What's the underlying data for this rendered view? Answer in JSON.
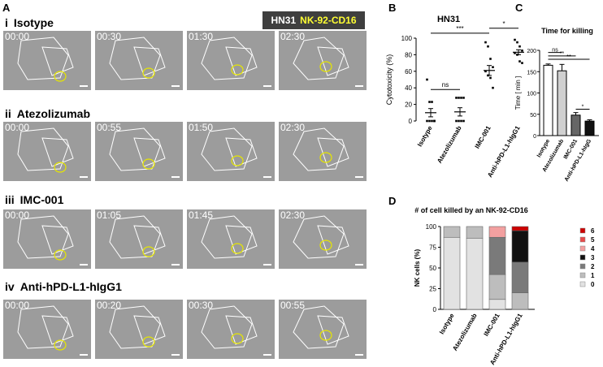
{
  "panel_a": {
    "letter": "A",
    "legend": {
      "cell": "HN31",
      "effector": "NK-92-CD16"
    },
    "rows": [
      {
        "numeral": "i",
        "name": "Isotype",
        "times": [
          "00:00",
          "00:30",
          "01:30",
          "02:30"
        ]
      },
      {
        "numeral": "ii",
        "name": "Atezolizumab",
        "times": [
          "00:00",
          "00:55",
          "01:50",
          "02:30"
        ]
      },
      {
        "numeral": "iii",
        "name": "IMC-001",
        "times": [
          "00:00",
          "01:05",
          "01:45",
          "02:30"
        ]
      },
      {
        "numeral": "iv",
        "name": "Anti-hPD-L1-hIgG1",
        "times": [
          "00:00",
          "00:20",
          "00:30",
          "00:55"
        ]
      }
    ]
  },
  "panel_b": {
    "letter": "B"
  },
  "panel_c": {
    "letter": "C"
  },
  "panel_d": {
    "letter": "D"
  },
  "chart_data": [
    {
      "type": "scatter",
      "title": "HN31",
      "ylabel": "Cytotoxicity (%)",
      "ylim": [
        0,
        100
      ],
      "yticks": [
        "0",
        "20",
        "40",
        "60",
        "80",
        "100"
      ],
      "categories": [
        "Isotype",
        "Atezolizumab",
        "IMC-001",
        "Anti-hPD-L1-hIgG1"
      ],
      "means": [
        10,
        11,
        61,
        83
      ],
      "sems": [
        5,
        5,
        6,
        3
      ],
      "points": [
        [
          50,
          23,
          23,
          0,
          0,
          0,
          0,
          0
        ],
        [
          28,
          28,
          28,
          28,
          0,
          0,
          0,
          0
        ],
        [
          95,
          90,
          75,
          65,
          60,
          55,
          52,
          40
        ],
        [
          98,
          95,
          90,
          85,
          82,
          80,
          72,
          70
        ]
      ],
      "significance": [
        "ns",
        "***",
        "*"
      ]
    },
    {
      "type": "bar",
      "title": "Time for killing",
      "ylabel": "Time [ min ]",
      "ylim": [
        0,
        200
      ],
      "yticks": [
        "0",
        "50",
        "100",
        "150",
        "200"
      ],
      "categories": [
        "Isotype",
        "Atezolizumab",
        "IMC-001",
        "Anti-hPD-L1-hIgG"
      ],
      "values": [
        165,
        152,
        48,
        34
      ],
      "errors": [
        3,
        15,
        6,
        3
      ],
      "colors": [
        "#ffffff",
        "#d0d0d0",
        "#666666",
        "#111111"
      ],
      "significance": [
        "ns",
        "**",
        "**",
        "*"
      ]
    },
    {
      "type": "bar",
      "title": "# of cell killed by an NK-92-CD16",
      "ylabel": "NK cells (%)",
      "ylim": [
        0,
        100
      ],
      "yticks": [
        "0",
        "25",
        "50",
        "75",
        "100"
      ],
      "categories": [
        "Isotype",
        "Atezolizumab",
        "IMC-001",
        "Anti-hPD-L1-hIgG1"
      ],
      "series": [
        {
          "name": "0",
          "color": "#e2e2e2",
          "values": [
            87,
            86,
            12,
            0
          ]
        },
        {
          "name": "1",
          "color": "#bdbdbd",
          "values": [
            13,
            14,
            30,
            20
          ]
        },
        {
          "name": "2",
          "color": "#7a7a7a",
          "values": [
            0,
            0,
            45,
            37
          ]
        },
        {
          "name": "3",
          "color": "#111111",
          "values": [
            0,
            0,
            0,
            38
          ]
        },
        {
          "name": "4",
          "color": "#f3a0a0",
          "values": [
            0,
            0,
            13,
            0
          ]
        },
        {
          "name": "5",
          "color": "#e84a4a",
          "values": [
            0,
            0,
            0,
            0
          ]
        },
        {
          "name": "6",
          "color": "#cc0000",
          "values": [
            0,
            0,
            0,
            5
          ]
        }
      ]
    }
  ]
}
